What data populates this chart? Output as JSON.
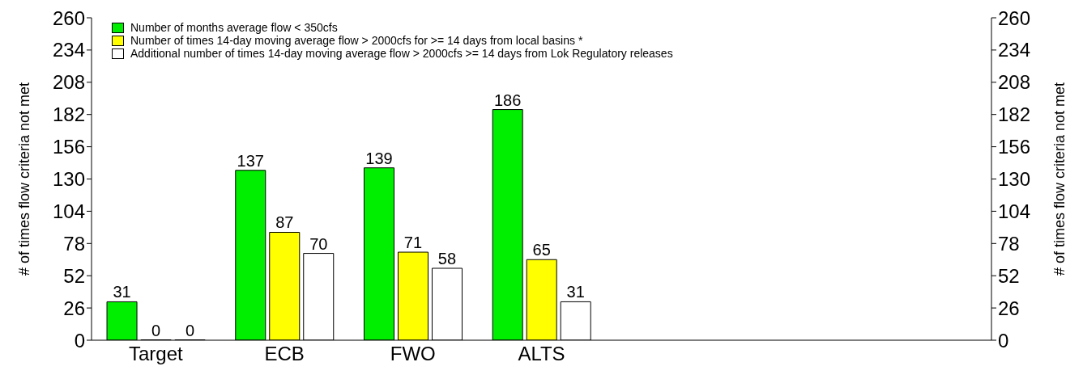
{
  "chart_data": {
    "type": "bar",
    "categories": [
      "Target",
      "ECB",
      "FWO",
      "ALTS",
      null,
      null,
      null
    ],
    "series": [
      {
        "name": "Number of months average flow < 350cfs",
        "color": "#00ee00",
        "values": [
          31,
          137,
          139,
          186,
          null,
          null,
          null
        ]
      },
      {
        "name": "Number of times 14-day moving average flow > 2000cfs for >= 14 days from local basins *",
        "color": "#ffff00",
        "values": [
          0,
          87,
          71,
          65,
          null,
          null,
          null
        ]
      },
      {
        "name": "Additional number of times 14-day moving average flow > 2000cfs >= 14 days from Lok Regulatory releases",
        "color": "#ffffff",
        "values": [
          0,
          70,
          58,
          31,
          null,
          null,
          null
        ]
      }
    ],
    "ylabel": "# of times flow criteria not met",
    "y2label": "# of times flow criteria not met",
    "ylim": [
      0,
      260
    ],
    "yticks": [
      0,
      26,
      52,
      78,
      104,
      130,
      156,
      182,
      208,
      234,
      260
    ],
    "y2lim": [
      0,
      260
    ],
    "y2ticks": [
      0,
      26,
      52,
      78,
      104,
      130,
      156,
      182,
      208,
      234,
      260
    ],
    "data_labels": true,
    "legend": "top left",
    "grid": false
  }
}
